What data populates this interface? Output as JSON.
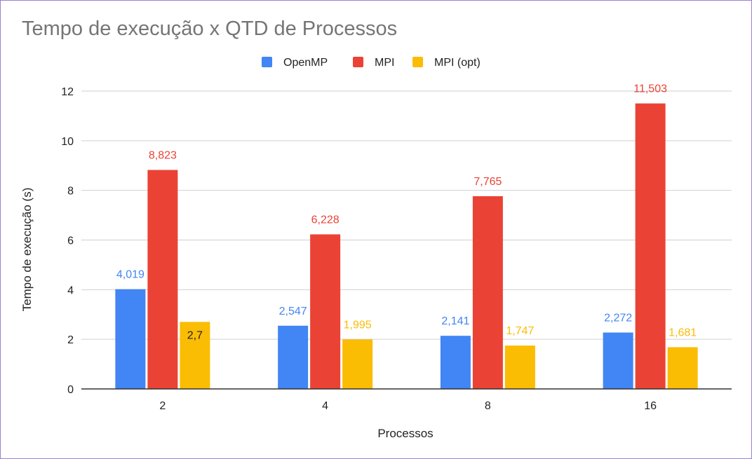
{
  "chart_data": {
    "type": "bar",
    "title": "Tempo de execução x QTD de Processos",
    "xlabel": "Processos",
    "ylabel": "Tempo de execução (s)",
    "categories": [
      "2",
      "4",
      "8",
      "16"
    ],
    "ylim": [
      0,
      12
    ],
    "yticks": [
      "0",
      "2",
      "4",
      "6",
      "8",
      "10",
      "12"
    ],
    "grid": true,
    "legend_position": "top",
    "series": [
      {
        "name": "OpenMP",
        "color": "#4285f4",
        "values": [
          4.019,
          2.547,
          2.141,
          2.272
        ],
        "labels": [
          "4,019",
          "2,547",
          "2,141",
          "2,272"
        ],
        "label_color": "#4285f4"
      },
      {
        "name": "MPI",
        "color": "#ea4335",
        "values": [
          8.823,
          6.228,
          7.765,
          11.503
        ],
        "labels": [
          "8,823",
          "6,228",
          "7,765",
          "11,503"
        ],
        "label_color": "#ea4335"
      },
      {
        "name": "MPI (opt)",
        "color": "#fbbc04",
        "values": [
          2.7,
          1.995,
          1.747,
          1.681
        ],
        "labels": [
          "2,7",
          "1,995",
          "1,747",
          "1,681"
        ],
        "label_color": "#fbbc04",
        "label_inside": [
          true,
          false,
          false,
          false
        ]
      }
    ]
  }
}
